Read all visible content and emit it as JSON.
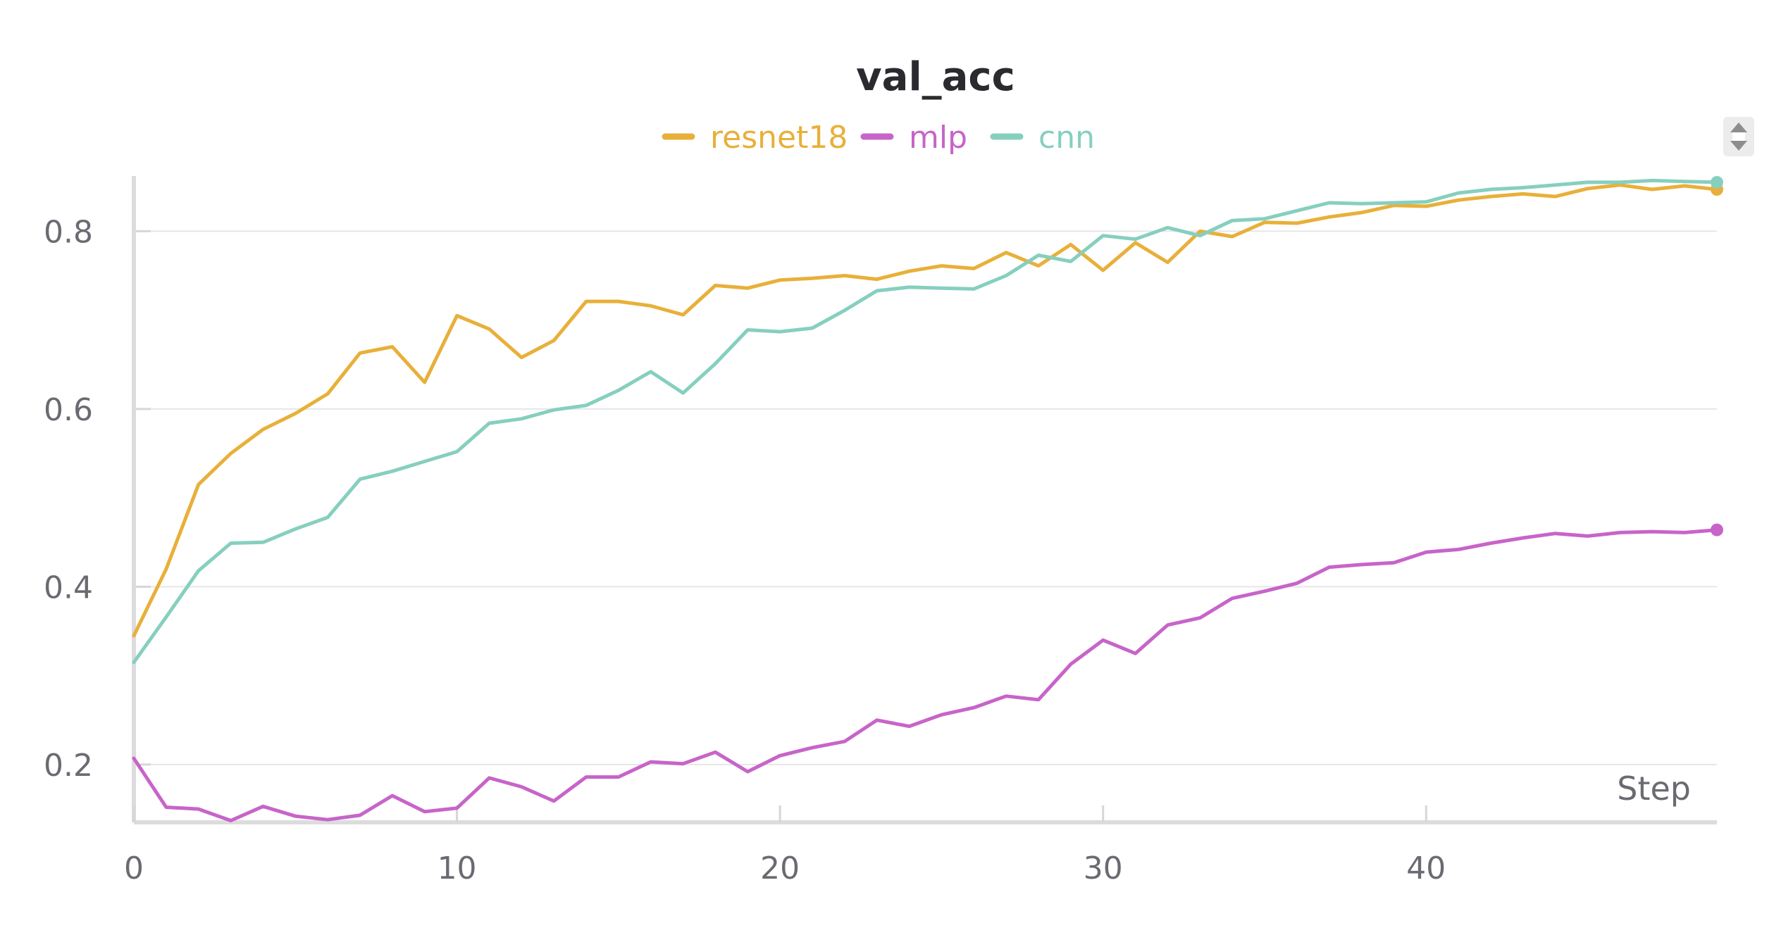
{
  "chart_data": {
    "type": "line",
    "title": "val_acc",
    "xlabel": "Step",
    "ylabel": "",
    "xlim": [
      0,
      49
    ],
    "ylim": [
      0.135,
      0.87
    ],
    "x_ticks": [
      "0",
      "10",
      "20",
      "30",
      "40"
    ],
    "y_ticks": [
      "0.2",
      "0.4",
      "0.6",
      "0.8"
    ],
    "grid": true,
    "legend_position": "top-center",
    "x": [
      0,
      1,
      2,
      3,
      4,
      5,
      6,
      7,
      8,
      9,
      10,
      11,
      12,
      13,
      14,
      15,
      16,
      17,
      18,
      19,
      20,
      21,
      22,
      23,
      24,
      25,
      26,
      27,
      28,
      29,
      30,
      31,
      32,
      33,
      34,
      35,
      36,
      37,
      38,
      39,
      40,
      41,
      42,
      43,
      44,
      45,
      46,
      47,
      48,
      49
    ],
    "series": [
      {
        "name": "resnet18",
        "color": "#e8b03a",
        "values": [
          0.345,
          0.42,
          0.515,
          0.55,
          0.577,
          0.595,
          0.617,
          0.663,
          0.67,
          0.63,
          0.705,
          0.69,
          0.658,
          0.677,
          0.721,
          0.721,
          0.716,
          0.706,
          0.739,
          0.736,
          0.745,
          0.747,
          0.75,
          0.746,
          0.755,
          0.761,
          0.758,
          0.776,
          0.761,
          0.785,
          0.756,
          0.787,
          0.765,
          0.8,
          0.794,
          0.81,
          0.809,
          0.816,
          0.821,
          0.829,
          0.828,
          0.835,
          0.839,
          0.842,
          0.839,
          0.848,
          0.852,
          0.847,
          0.851,
          0.847
        ]
      },
      {
        "name": "mlp",
        "color": "#c764c9",
        "values": [
          0.207,
          0.152,
          0.15,
          0.137,
          0.153,
          0.142,
          0.138,
          0.143,
          0.165,
          0.147,
          0.151,
          0.185,
          0.175,
          0.159,
          0.186,
          0.186,
          0.203,
          0.201,
          0.214,
          0.192,
          0.21,
          0.219,
          0.226,
          0.25,
          0.243,
          0.256,
          0.264,
          0.277,
          0.273,
          0.313,
          0.34,
          0.325,
          0.357,
          0.365,
          0.387,
          0.395,
          0.404,
          0.422,
          0.425,
          0.427,
          0.439,
          0.442,
          0.449,
          0.455,
          0.46,
          0.457,
          0.461,
          0.462,
          0.461,
          0.464
        ]
      },
      {
        "name": "cnn",
        "color": "#86cfbf",
        "values": [
          0.315,
          0.366,
          0.418,
          0.449,
          0.45,
          0.465,
          0.478,
          0.521,
          0.53,
          0.541,
          0.552,
          0.584,
          0.589,
          0.599,
          0.604,
          0.621,
          0.642,
          0.618,
          0.651,
          0.689,
          0.687,
          0.691,
          0.711,
          0.733,
          0.737,
          0.736,
          0.735,
          0.75,
          0.773,
          0.766,
          0.795,
          0.791,
          0.804,
          0.795,
          0.812,
          0.814,
          0.823,
          0.832,
          0.831,
          0.832,
          0.833,
          0.843,
          0.847,
          0.849,
          0.852,
          0.855,
          0.855,
          0.857,
          0.856,
          0.855
        ]
      }
    ]
  }
}
